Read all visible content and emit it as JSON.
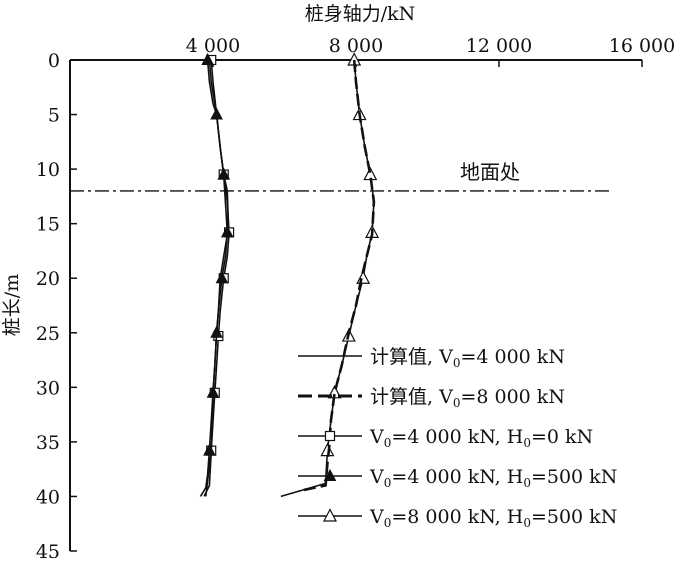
{
  "chart_data": {
    "type": "line",
    "orientation": "inverted-depth",
    "xlabel": "桩身轴力/kN",
    "ylabel": "桩长/m",
    "x_axis_position": "top",
    "y_axis_inverted": true,
    "xlim": [
      0,
      16000
    ],
    "ylim": [
      0,
      45
    ],
    "x_ticks": [
      4000,
      8000,
      12000,
      16000
    ],
    "x_tick_labels": [
      "4 000",
      "8 000",
      "12 000",
      "16 000"
    ],
    "y_ticks": [
      0,
      5,
      10,
      15,
      20,
      25,
      30,
      35,
      40,
      45
    ],
    "y_tick_labels": [
      "0",
      "5",
      "10",
      "15",
      "20",
      "25",
      "30",
      "35",
      "40",
      "45"
    ],
    "grid": false,
    "legend_position": "bottom-right",
    "annotation": {
      "text": "地面处",
      "depth": 12
    },
    "series": [
      {
        "legend_prefix": "计算值, V",
        "legend_sub": "0",
        "legend_suffix": "=4 000 kN",
        "style": "solid",
        "marker": "none",
        "color": "#111111",
        "x": [
          3900,
          3950,
          4050,
          4100,
          4200,
          4300,
          4400,
          4420,
          4400,
          4300,
          4200,
          4150,
          4100,
          4050,
          4000,
          3980,
          3950,
          3900,
          3750
        ],
        "y": [
          0,
          2,
          4,
          5,
          8,
          10.5,
          12,
          14,
          16,
          18,
          20,
          23,
          25,
          28,
          30.5,
          33,
          36,
          39,
          40
        ]
      },
      {
        "legend_prefix": "计算值, V",
        "legend_sub": "0",
        "legend_suffix": "=8 000 kN",
        "style": "dashed",
        "marker": "none",
        "color": "#111111",
        "x": [
          7950,
          8000,
          8100,
          8250,
          8400,
          8500,
          8450,
          8300,
          8150,
          8000,
          7800,
          7600,
          7400,
          7300,
          7250,
          7200,
          7150,
          6400
        ],
        "y": [
          0,
          2,
          5,
          8,
          10.5,
          13,
          16,
          18,
          20,
          22.5,
          25,
          28,
          30.5,
          33,
          35.5,
          37,
          39,
          39.5
        ]
      },
      {
        "legend_prefix": "V",
        "legend_sub": "0",
        "legend_suffix": "=4 000 kN, H",
        "legend_sub2": "0",
        "legend_suffix2": "=0 kN",
        "style": "solid",
        "marker": "square-open",
        "color": "#111111",
        "x": [
          3950,
          4000,
          4100,
          4200,
          4300,
          4400,
          4450,
          4400,
          4300,
          4200,
          4150,
          4100,
          4050,
          3950,
          3800
        ],
        "y": [
          0,
          2,
          5,
          8,
          10.5,
          13,
          15.8,
          18,
          20,
          23,
          25.3,
          28,
          30.5,
          35.8,
          40
        ]
      },
      {
        "legend_prefix": "V",
        "legend_sub": "0",
        "legend_suffix": "=4 000 kN, H",
        "legend_sub2": "0",
        "legend_suffix2": "=500 kN",
        "style": "solid",
        "marker": "triangle-filled",
        "color": "#111111",
        "x": [
          3850,
          3900,
          4000,
          4100,
          4200,
          4300,
          4400,
          4350,
          4250,
          4150,
          4100,
          4050,
          4000,
          3900,
          3850,
          3800,
          3650
        ],
        "y": [
          0,
          2,
          4,
          5,
          8,
          10.5,
          15.8,
          18,
          20,
          23,
          25,
          28,
          30.5,
          35.8,
          38,
          39.2,
          40
        ]
      },
      {
        "legend_prefix": "V",
        "legend_sub": "0",
        "legend_suffix": "=8 000 kN, H",
        "legend_sub2": "0",
        "legend_suffix2": "=500 kN",
        "style": "solid",
        "marker": "triangle-open",
        "color": "#111111",
        "x": [
          7950,
          8000,
          8100,
          8250,
          8400,
          8500,
          8450,
          8300,
          8200,
          8000,
          7800,
          7600,
          7400,
          7300,
          7200,
          7150,
          5900
        ],
        "y": [
          0,
          2,
          5,
          8,
          10.5,
          13,
          15.8,
          18,
          20,
          22.5,
          25.3,
          28,
          30.5,
          33,
          35.8,
          38.8,
          40
        ]
      }
    ]
  }
}
